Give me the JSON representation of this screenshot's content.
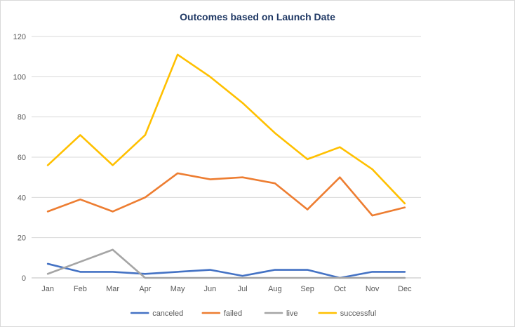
{
  "chart_data": {
    "type": "line",
    "title": "Outcomes based on Launch Date",
    "xlabel": "",
    "ylabel": "",
    "categories": [
      "Jan",
      "Feb",
      "Mar",
      "Apr",
      "May",
      "Jun",
      "Jul",
      "Aug",
      "Sep",
      "Oct",
      "Nov",
      "Dec"
    ],
    "ylim": [
      0,
      120
    ],
    "yticks": [
      "0",
      "20",
      "40",
      "60",
      "80",
      "100",
      "120"
    ],
    "grid": true,
    "legend_position": "bottom",
    "series": [
      {
        "name": "canceled",
        "color": "#4472C4",
        "values": [
          7,
          3,
          3,
          2,
          3,
          4,
          1,
          4,
          4,
          0,
          3,
          3
        ]
      },
      {
        "name": "failed",
        "color": "#ED7D31",
        "values": [
          33,
          39,
          33,
          40,
          52,
          49,
          50,
          47,
          34,
          50,
          31,
          35
        ]
      },
      {
        "name": "live",
        "color": "#A5A5A5",
        "values": [
          2,
          8,
          14,
          0,
          0,
          0,
          0,
          0,
          0,
          0,
          0,
          0
        ]
      },
      {
        "name": "successful",
        "color": "#FFC000",
        "values": [
          56,
          71,
          56,
          71,
          111,
          100,
          87,
          72,
          59,
          65,
          54,
          37
        ]
      }
    ]
  }
}
